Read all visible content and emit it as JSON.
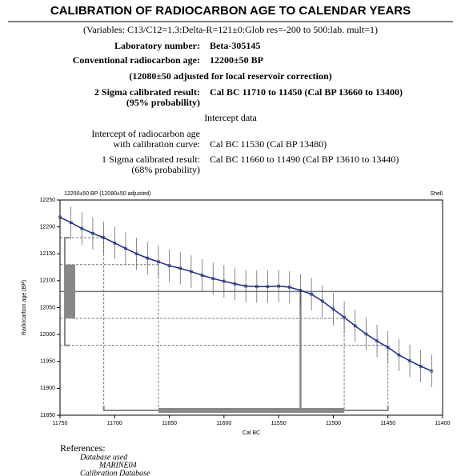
{
  "header": {
    "title": "CALIBRATION OF RADIOCARBON  AGE TO CALENDAR YEARS",
    "variables": "(Variables:  C13/C12=1.3:Delta-R=121±0:Glob res=-200 to 500:lab. mult=1)"
  },
  "fields": [
    {
      "label": "Laboratory number:",
      "value": "Beta-305145"
    },
    {
      "label": "Conventional radiocarbon age:",
      "value": "12200±50 BP"
    }
  ],
  "adjusted_note": "(12080±50 adjusted for local reservoir correction)",
  "two_sigma": {
    "label": "2 Sigma calibrated result:",
    "probability": "(95% probability)",
    "value": "Cal BC 11710 to 11450 (Cal BP 13660 to 13400)"
  },
  "intercept_heading": "Intercept data",
  "intercept": {
    "label_1": "Intercept of radiocarbon age",
    "label_2": "with calibration curve:",
    "value": "Cal BC 11530 (Cal BP 13480)"
  },
  "one_sigma": {
    "label": "1 Sigma calibrated result:",
    "probability": "(68% probability)",
    "value": "Cal BC 11660 to 11490 (Cal BP 13610 to 13440)"
  },
  "chart_data": {
    "type": "line",
    "title": "12200±50 BP (12080±50 adjusted)",
    "material": "Shell",
    "x_label": "Cal BC",
    "y_label": "Radiocarbon age (BP)",
    "x": [
      11750,
      11740,
      11730,
      11720,
      11710,
      11700,
      11690,
      11680,
      11670,
      11660,
      11650,
      11640,
      11630,
      11620,
      11610,
      11600,
      11590,
      11580,
      11570,
      11560,
      11550,
      11540,
      11530,
      11520,
      11510,
      11500,
      11490,
      11480,
      11470,
      11460,
      11450,
      11440,
      11430,
      11420,
      11410
    ],
    "series": [
      {
        "name": "Calibration curve",
        "color": "#1a2a8a",
        "values": [
          12218,
          12208,
          12197,
          12188,
          12180,
          12170,
          12160,
          12150,
          12142,
          12135,
          12128,
          12123,
          12117,
          12110,
          12104,
          12099,
          12094,
          12090,
          12089,
          12089,
          12090,
          12088,
          12082,
          12075,
          12062,
          12047,
          12032,
          12016,
          12001,
          11988,
          11976,
          11962,
          11951,
          11941,
          11932
        ],
        "errors": [
          30,
          30,
          30,
          30,
          30,
          30,
          30,
          30,
          30,
          30,
          30,
          30,
          30,
          30,
          30,
          30,
          30,
          30,
          30,
          30,
          30,
          30,
          30,
          30,
          30,
          30,
          30,
          30,
          30,
          30,
          30,
          30,
          30,
          30,
          30
        ]
      }
    ],
    "xlim": [
      11750,
      11400
    ],
    "xticks": [
      11750,
      11700,
      11650,
      11600,
      11550,
      11500,
      11450,
      11400
    ],
    "ylim": [
      11850,
      12250
    ],
    "yticks": [
      11850,
      11900,
      11950,
      12000,
      12050,
      12100,
      12150,
      12200,
      12250
    ],
    "reference_age": 12080,
    "sigma1_age": [
      12030,
      12130
    ],
    "sigma2_age": [
      11980,
      12180
    ],
    "intercept_cal": 11530,
    "sigma1_cal": [
      11660,
      11490
    ],
    "sigma2_cal": [
      11710,
      11450
    ],
    "band_color": "#888888"
  },
  "references": {
    "heading": "References:",
    "line_1": "Database used",
    "line_2": "MARINE04",
    "line_3": "Calibration Database"
  }
}
